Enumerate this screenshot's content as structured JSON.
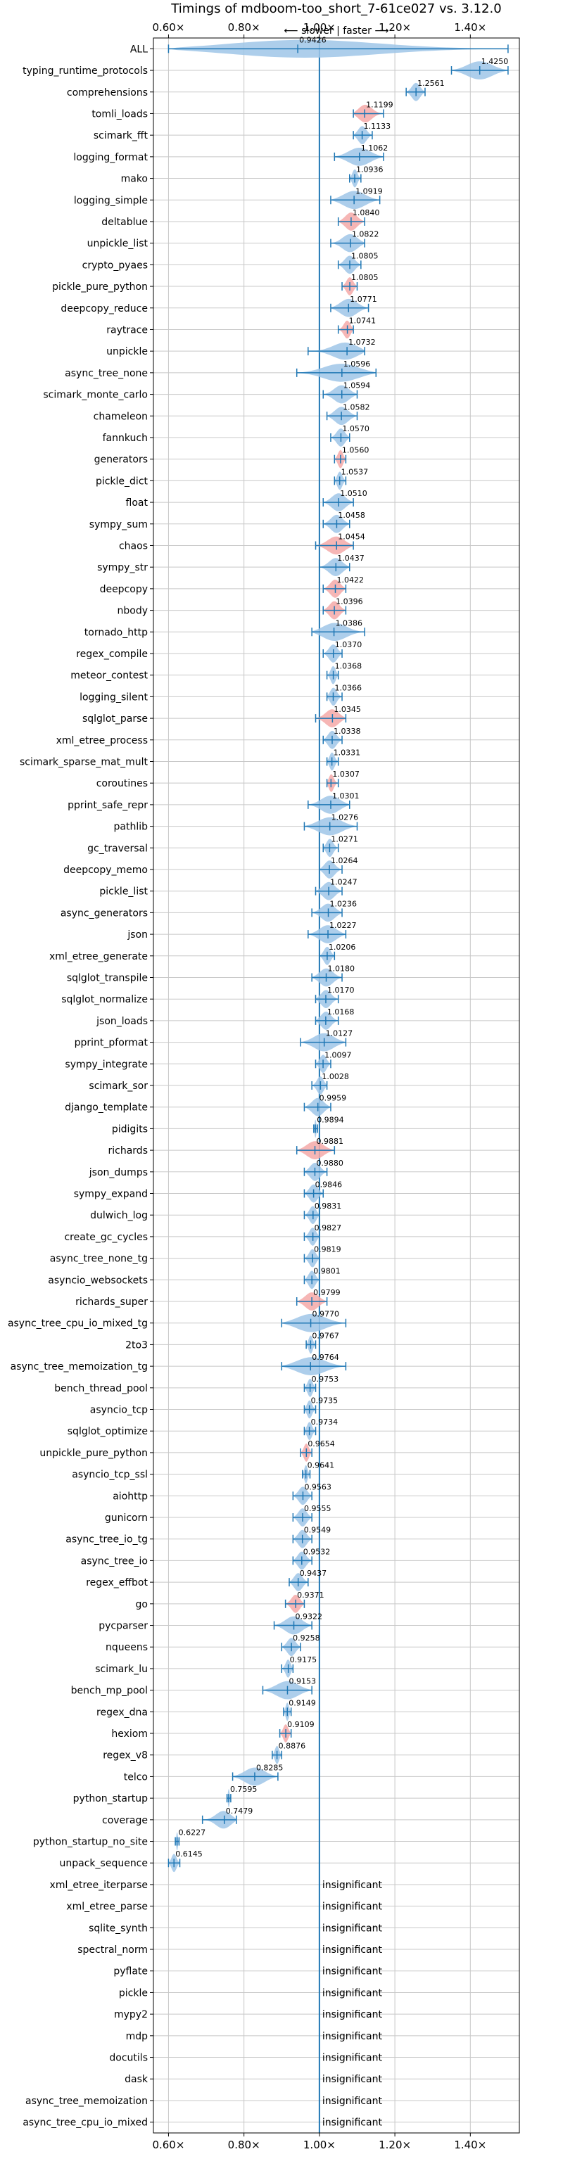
{
  "chart_data": {
    "type": "violin",
    "title": "Timings of mdboom-too_short_7-61ce027 vs. 3.12.0",
    "direction_label": "⟵ slower | faster ⟶",
    "xlim": [
      0.56,
      1.53
    ],
    "x_ticks": [
      0.6,
      0.8,
      1.0,
      1.2,
      1.4
    ],
    "x_tick_labels": [
      "0.60×",
      "0.80×",
      "1.00×",
      "1.20×",
      "1.40×"
    ],
    "reference_line": 1.0,
    "grid": true,
    "insignificant_label": "insignificant",
    "colors": {
      "normal": "#9fc5e8",
      "highlight": "#f4a9a8",
      "line": "#1f77b4",
      "grid": "#c8c8c8"
    },
    "benchmarks": [
      {
        "name": "ALL",
        "value": 0.9426,
        "label": "0.9426",
        "low": 0.6,
        "high": 1.5,
        "highlight": false
      },
      {
        "name": "typing_runtime_protocols",
        "value": 1.425,
        "label": "1.4250",
        "low": 1.35,
        "high": 1.5,
        "highlight": false
      },
      {
        "name": "comprehensions",
        "value": 1.2561,
        "label": "1.2561",
        "low": 1.23,
        "high": 1.28,
        "highlight": false
      },
      {
        "name": "tomli_loads",
        "value": 1.1199,
        "label": "1.1199",
        "low": 1.09,
        "high": 1.17,
        "highlight": true
      },
      {
        "name": "scimark_fft",
        "value": 1.1133,
        "label": "1.1133",
        "low": 1.09,
        "high": 1.14,
        "highlight": false
      },
      {
        "name": "logging_format",
        "value": 1.1062,
        "label": "1.1062",
        "low": 1.04,
        "high": 1.17,
        "highlight": false
      },
      {
        "name": "mako",
        "value": 1.0936,
        "label": "1.0936",
        "low": 1.08,
        "high": 1.11,
        "highlight": false
      },
      {
        "name": "logging_simple",
        "value": 1.0919,
        "label": "1.0919",
        "low": 1.03,
        "high": 1.16,
        "highlight": false
      },
      {
        "name": "deltablue",
        "value": 1.084,
        "label": "1.0840",
        "low": 1.05,
        "high": 1.12,
        "highlight": true
      },
      {
        "name": "unpickle_list",
        "value": 1.0822,
        "label": "1.0822",
        "low": 1.03,
        "high": 1.12,
        "highlight": false
      },
      {
        "name": "crypto_pyaes",
        "value": 1.0805,
        "label": "1.0805",
        "low": 1.05,
        "high": 1.11,
        "highlight": false
      },
      {
        "name": "pickle_pure_python",
        "value": 1.0805,
        "label": "1.0805",
        "low": 1.06,
        "high": 1.1,
        "highlight": true
      },
      {
        "name": "deepcopy_reduce",
        "value": 1.0771,
        "label": "1.0771",
        "low": 1.03,
        "high": 1.13,
        "highlight": false
      },
      {
        "name": "raytrace",
        "value": 1.0741,
        "label": "1.0741",
        "low": 1.05,
        "high": 1.09,
        "highlight": true
      },
      {
        "name": "unpickle",
        "value": 1.0732,
        "label": "1.0732",
        "low": 0.97,
        "high": 1.12,
        "highlight": false
      },
      {
        "name": "async_tree_none",
        "value": 1.0596,
        "label": "1.0596",
        "low": 0.94,
        "high": 1.15,
        "highlight": false
      },
      {
        "name": "scimark_monte_carlo",
        "value": 1.0594,
        "label": "1.0594",
        "low": 1.01,
        "high": 1.1,
        "highlight": false
      },
      {
        "name": "chameleon",
        "value": 1.0582,
        "label": "1.0582",
        "low": 1.02,
        "high": 1.1,
        "highlight": false
      },
      {
        "name": "fannkuch",
        "value": 1.057,
        "label": "1.0570",
        "low": 1.03,
        "high": 1.08,
        "highlight": false
      },
      {
        "name": "generators",
        "value": 1.056,
        "label": "1.0560",
        "low": 1.04,
        "high": 1.07,
        "highlight": true
      },
      {
        "name": "pickle_dict",
        "value": 1.0537,
        "label": "1.0537",
        "low": 1.04,
        "high": 1.07,
        "highlight": false
      },
      {
        "name": "float",
        "value": 1.051,
        "label": "1.0510",
        "low": 1.01,
        "high": 1.09,
        "highlight": false
      },
      {
        "name": "sympy_sum",
        "value": 1.0458,
        "label": "1.0458",
        "low": 1.01,
        "high": 1.08,
        "highlight": false
      },
      {
        "name": "chaos",
        "value": 1.0454,
        "label": "1.0454",
        "low": 0.99,
        "high": 1.09,
        "highlight": true
      },
      {
        "name": "sympy_str",
        "value": 1.0437,
        "label": "1.0437",
        "low": 1.0,
        "high": 1.08,
        "highlight": false
      },
      {
        "name": "deepcopy",
        "value": 1.0422,
        "label": "1.0422",
        "low": 1.01,
        "high": 1.07,
        "highlight": true
      },
      {
        "name": "nbody",
        "value": 1.0396,
        "label": "1.0396",
        "low": 1.01,
        "high": 1.07,
        "highlight": true
      },
      {
        "name": "tornado_http",
        "value": 1.0386,
        "label": "1.0386",
        "low": 0.98,
        "high": 1.12,
        "highlight": false
      },
      {
        "name": "regex_compile",
        "value": 1.037,
        "label": "1.0370",
        "low": 1.01,
        "high": 1.06,
        "highlight": false
      },
      {
        "name": "meteor_contest",
        "value": 1.0368,
        "label": "1.0368",
        "low": 1.02,
        "high": 1.05,
        "highlight": false
      },
      {
        "name": "logging_silent",
        "value": 1.0366,
        "label": "1.0366",
        "low": 1.02,
        "high": 1.06,
        "highlight": false
      },
      {
        "name": "sqlglot_parse",
        "value": 1.0345,
        "label": "1.0345",
        "low": 0.99,
        "high": 1.07,
        "highlight": true
      },
      {
        "name": "xml_etree_process",
        "value": 1.0338,
        "label": "1.0338",
        "low": 1.01,
        "high": 1.06,
        "highlight": false
      },
      {
        "name": "scimark_sparse_mat_mult",
        "value": 1.0331,
        "label": "1.0331",
        "low": 1.02,
        "high": 1.05,
        "highlight": false
      },
      {
        "name": "coroutines",
        "value": 1.0307,
        "label": "1.0307",
        "low": 1.02,
        "high": 1.05,
        "highlight": true
      },
      {
        "name": "pprint_safe_repr",
        "value": 1.0301,
        "label": "1.0301",
        "low": 0.97,
        "high": 1.08,
        "highlight": false
      },
      {
        "name": "pathlib",
        "value": 1.0276,
        "label": "1.0276",
        "low": 0.96,
        "high": 1.1,
        "highlight": false
      },
      {
        "name": "gc_traversal",
        "value": 1.0271,
        "label": "1.0271",
        "low": 1.01,
        "high": 1.05,
        "highlight": false
      },
      {
        "name": "deepcopy_memo",
        "value": 1.0264,
        "label": "1.0264",
        "low": 1.0,
        "high": 1.06,
        "highlight": false
      },
      {
        "name": "pickle_list",
        "value": 1.0247,
        "label": "1.0247",
        "low": 0.99,
        "high": 1.06,
        "highlight": false
      },
      {
        "name": "async_generators",
        "value": 1.0236,
        "label": "1.0236",
        "low": 0.98,
        "high": 1.06,
        "highlight": false
      },
      {
        "name": "json",
        "value": 1.0227,
        "label": "1.0227",
        "low": 0.97,
        "high": 1.07,
        "highlight": false
      },
      {
        "name": "xml_etree_generate",
        "value": 1.0206,
        "label": "1.0206",
        "low": 1.0,
        "high": 1.04,
        "highlight": false
      },
      {
        "name": "sqlglot_transpile",
        "value": 1.018,
        "label": "1.0180",
        "low": 0.98,
        "high": 1.06,
        "highlight": false
      },
      {
        "name": "sqlglot_normalize",
        "value": 1.017,
        "label": "1.0170",
        "low": 0.99,
        "high": 1.05,
        "highlight": false
      },
      {
        "name": "json_loads",
        "value": 1.0168,
        "label": "1.0168",
        "low": 0.99,
        "high": 1.05,
        "highlight": false
      },
      {
        "name": "pprint_pformat",
        "value": 1.0127,
        "label": "1.0127",
        "low": 0.95,
        "high": 1.07,
        "highlight": false
      },
      {
        "name": "sympy_integrate",
        "value": 1.0097,
        "label": "1.0097",
        "low": 0.99,
        "high": 1.03,
        "highlight": false
      },
      {
        "name": "scimark_sor",
        "value": 1.0028,
        "label": "1.0028",
        "low": 0.98,
        "high": 1.02,
        "highlight": false
      },
      {
        "name": "django_template",
        "value": 0.9959,
        "label": "0.9959",
        "low": 0.96,
        "high": 1.03,
        "highlight": false
      },
      {
        "name": "pidigits",
        "value": 0.9894,
        "label": "0.9894",
        "low": 0.985,
        "high": 0.995,
        "highlight": false
      },
      {
        "name": "richards",
        "value": 0.9881,
        "label": "0.9881",
        "low": 0.94,
        "high": 1.04,
        "highlight": true
      },
      {
        "name": "json_dumps",
        "value": 0.988,
        "label": "0.9880",
        "low": 0.96,
        "high": 1.02,
        "highlight": false
      },
      {
        "name": "sympy_expand",
        "value": 0.9846,
        "label": "0.9846",
        "low": 0.96,
        "high": 1.01,
        "highlight": false
      },
      {
        "name": "dulwich_log",
        "value": 0.9831,
        "label": "0.9831",
        "low": 0.96,
        "high": 1.0,
        "highlight": false
      },
      {
        "name": "create_gc_cycles",
        "value": 0.9827,
        "label": "0.9827",
        "low": 0.96,
        "high": 1.0,
        "highlight": false
      },
      {
        "name": "async_tree_none_tg",
        "value": 0.9819,
        "label": "0.9819",
        "low": 0.96,
        "high": 1.0,
        "highlight": false
      },
      {
        "name": "asyncio_websockets",
        "value": 0.9801,
        "label": "0.9801",
        "low": 0.96,
        "high": 1.0,
        "highlight": false
      },
      {
        "name": "richards_super",
        "value": 0.9799,
        "label": "0.9799",
        "low": 0.94,
        "high": 1.02,
        "highlight": true
      },
      {
        "name": "async_tree_cpu_io_mixed_tg",
        "value": 0.977,
        "label": "0.9770",
        "low": 0.9,
        "high": 1.07,
        "highlight": false
      },
      {
        "name": "2to3",
        "value": 0.9767,
        "label": "0.9767",
        "low": 0.965,
        "high": 0.99,
        "highlight": false
      },
      {
        "name": "async_tree_memoization_tg",
        "value": 0.9764,
        "label": "0.9764",
        "low": 0.9,
        "high": 1.07,
        "highlight": false
      },
      {
        "name": "bench_thread_pool",
        "value": 0.9753,
        "label": "0.9753",
        "low": 0.96,
        "high": 0.99,
        "highlight": false
      },
      {
        "name": "asyncio_tcp",
        "value": 0.9735,
        "label": "0.9735",
        "low": 0.96,
        "high": 0.99,
        "highlight": false
      },
      {
        "name": "sqlglot_optimize",
        "value": 0.9734,
        "label": "0.9734",
        "low": 0.96,
        "high": 0.99,
        "highlight": false
      },
      {
        "name": "unpickle_pure_python",
        "value": 0.9654,
        "label": "0.9654",
        "low": 0.95,
        "high": 0.98,
        "highlight": true
      },
      {
        "name": "asyncio_tcp_ssl",
        "value": 0.9641,
        "label": "0.9641",
        "low": 0.955,
        "high": 0.975,
        "highlight": false
      },
      {
        "name": "aiohttp",
        "value": 0.9563,
        "label": "0.9563",
        "low": 0.93,
        "high": 0.98,
        "highlight": false
      },
      {
        "name": "gunicorn",
        "value": 0.9555,
        "label": "0.9555",
        "low": 0.93,
        "high": 0.98,
        "highlight": false
      },
      {
        "name": "async_tree_io_tg",
        "value": 0.9549,
        "label": "0.9549",
        "low": 0.93,
        "high": 0.98,
        "highlight": false
      },
      {
        "name": "async_tree_io",
        "value": 0.9532,
        "label": "0.9532",
        "low": 0.93,
        "high": 0.98,
        "highlight": false
      },
      {
        "name": "regex_effbot",
        "value": 0.9437,
        "label": "0.9437",
        "low": 0.92,
        "high": 0.97,
        "highlight": false
      },
      {
        "name": "go",
        "value": 0.9371,
        "label": "0.9371",
        "low": 0.91,
        "high": 0.96,
        "highlight": true
      },
      {
        "name": "pycparser",
        "value": 0.9322,
        "label": "0.9322",
        "low": 0.88,
        "high": 0.98,
        "highlight": false
      },
      {
        "name": "nqueens",
        "value": 0.9258,
        "label": "0.9258",
        "low": 0.9,
        "high": 0.95,
        "highlight": false
      },
      {
        "name": "scimark_lu",
        "value": 0.9175,
        "label": "0.9175",
        "low": 0.9,
        "high": 0.93,
        "highlight": false
      },
      {
        "name": "bench_mp_pool",
        "value": 0.9153,
        "label": "0.9153",
        "low": 0.85,
        "high": 0.98,
        "highlight": false
      },
      {
        "name": "regex_dna",
        "value": 0.9149,
        "label": "0.9149",
        "low": 0.905,
        "high": 0.925,
        "highlight": false
      },
      {
        "name": "hexiom",
        "value": 0.9109,
        "label": "0.9109",
        "low": 0.895,
        "high": 0.925,
        "highlight": true
      },
      {
        "name": "regex_v8",
        "value": 0.8876,
        "label": "0.8876",
        "low": 0.875,
        "high": 0.9,
        "highlight": false
      },
      {
        "name": "telco",
        "value": 0.8285,
        "label": "0.8285",
        "low": 0.77,
        "high": 0.89,
        "highlight": false
      },
      {
        "name": "python_startup",
        "value": 0.7595,
        "label": "0.7595",
        "low": 0.755,
        "high": 0.765,
        "highlight": false
      },
      {
        "name": "coverage",
        "value": 0.7479,
        "label": "0.7479",
        "low": 0.69,
        "high": 0.78,
        "highlight": false
      },
      {
        "name": "python_startup_no_site",
        "value": 0.6227,
        "label": "0.6227",
        "low": 0.618,
        "high": 0.628,
        "highlight": false
      },
      {
        "name": "unpack_sequence",
        "value": 0.6145,
        "label": "0.6145",
        "low": 0.6,
        "high": 0.63,
        "highlight": false
      },
      {
        "name": "xml_etree_iterparse",
        "value": null,
        "label": "insignificant",
        "highlight": false
      },
      {
        "name": "xml_etree_parse",
        "value": null,
        "label": "insignificant",
        "highlight": false
      },
      {
        "name": "sqlite_synth",
        "value": null,
        "label": "insignificant",
        "highlight": false
      },
      {
        "name": "spectral_norm",
        "value": null,
        "label": "insignificant",
        "highlight": false
      },
      {
        "name": "pyflate",
        "value": null,
        "label": "insignificant",
        "highlight": false
      },
      {
        "name": "pickle",
        "value": null,
        "label": "insignificant",
        "highlight": false
      },
      {
        "name": "mypy2",
        "value": null,
        "label": "insignificant",
        "highlight": false
      },
      {
        "name": "mdp",
        "value": null,
        "label": "insignificant",
        "highlight": false
      },
      {
        "name": "docutils",
        "value": null,
        "label": "insignificant",
        "highlight": false
      },
      {
        "name": "dask",
        "value": null,
        "label": "insignificant",
        "highlight": false
      },
      {
        "name": "async_tree_memoization",
        "value": null,
        "label": "insignificant",
        "highlight": false
      },
      {
        "name": "async_tree_cpu_io_mixed",
        "value": null,
        "label": "insignificant",
        "highlight": false
      }
    ]
  }
}
